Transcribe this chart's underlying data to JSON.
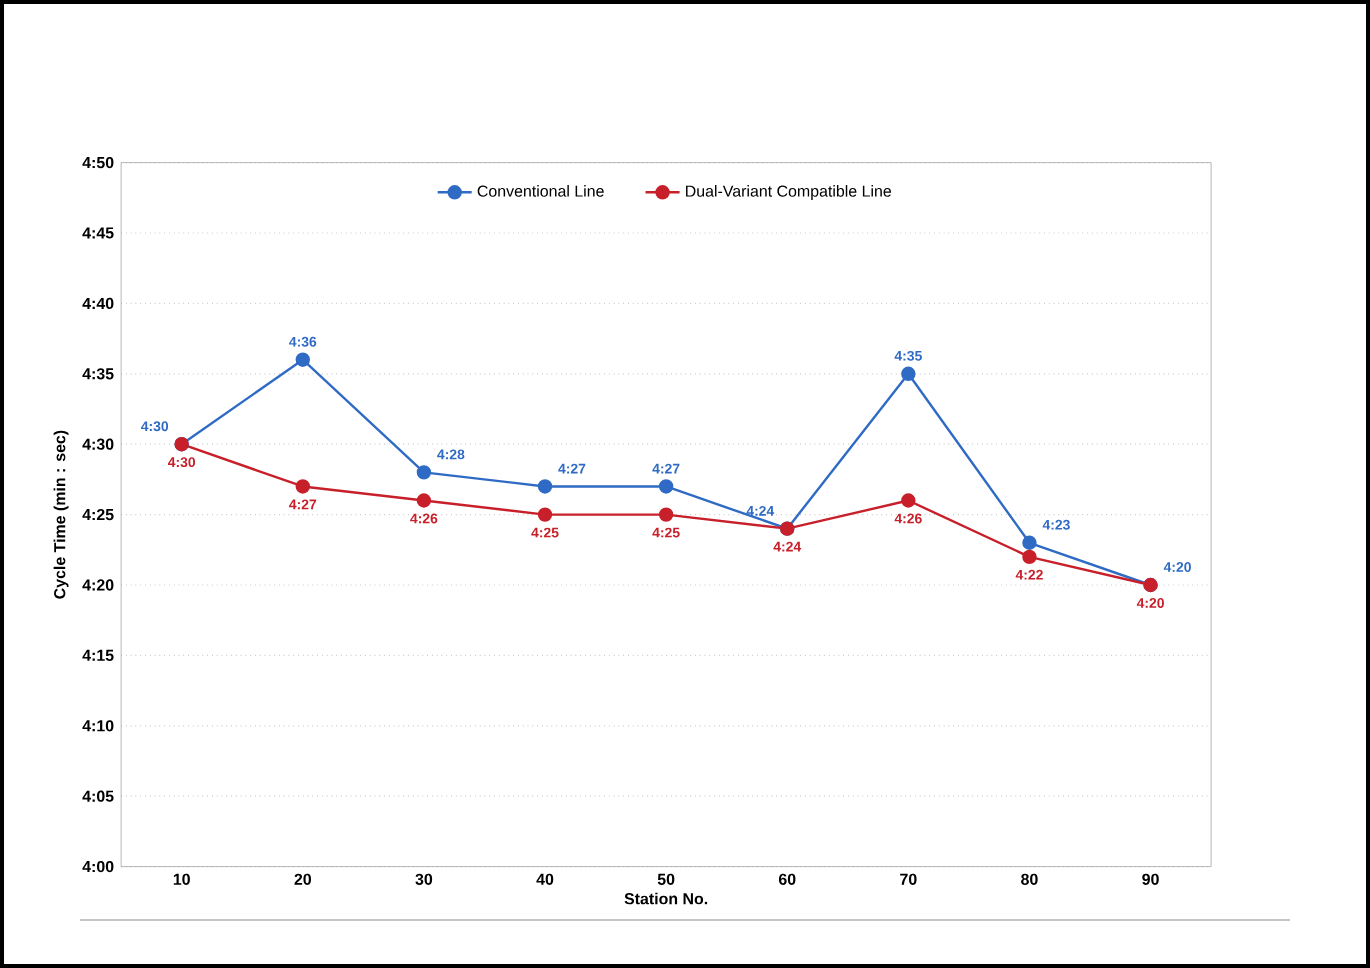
{
  "chart_data": {
    "type": "line",
    "xlabel": "Station No.",
    "ylabel": "Cycle Time (min : sec)",
    "categories": [
      "10",
      "20",
      "30",
      "40",
      "50",
      "60",
      "70",
      "80",
      "90"
    ],
    "series": [
      {
        "name": "Conventional Line",
        "color": "#2f6bc4",
        "values": [
          270,
          276,
          268,
          267,
          267,
          264,
          275,
          263,
          260
        ],
        "value_labels": [
          "4:30",
          "4:36",
          "4:28",
          "4:27",
          "4:27",
          "4:24",
          "4:35",
          "4:23",
          "4:20"
        ]
      },
      {
        "name": "Dual-Variant Compatible Line",
        "color": "#c8202a",
        "values": [
          270,
          267,
          266,
          265,
          265,
          264,
          266,
          262,
          260
        ],
        "value_labels": [
          "4:30",
          "4:27",
          "4:26",
          "4:25",
          "4:25",
          "4:24",
          "4:26",
          "4:22",
          "4:20"
        ]
      }
    ],
    "ylim": [
      240,
      290
    ],
    "yticks": [
      {
        "value": 240,
        "label": "4:00"
      },
      {
        "value": 245,
        "label": "4:05"
      },
      {
        "value": 250,
        "label": "4:10"
      },
      {
        "value": 255,
        "label": "4:15"
      },
      {
        "value": 260,
        "label": "4:20"
      },
      {
        "value": 265,
        "label": "4:25"
      },
      {
        "value": 270,
        "label": "4:30"
      },
      {
        "value": 275,
        "label": "4:35"
      },
      {
        "value": 280,
        "label": "4:40"
      },
      {
        "value": 285,
        "label": "4:45"
      },
      {
        "value": 290,
        "label": "4:50"
      }
    ],
    "grid": "y",
    "legend": "top",
    "marker": "circle",
    "line_style": "solid"
  }
}
